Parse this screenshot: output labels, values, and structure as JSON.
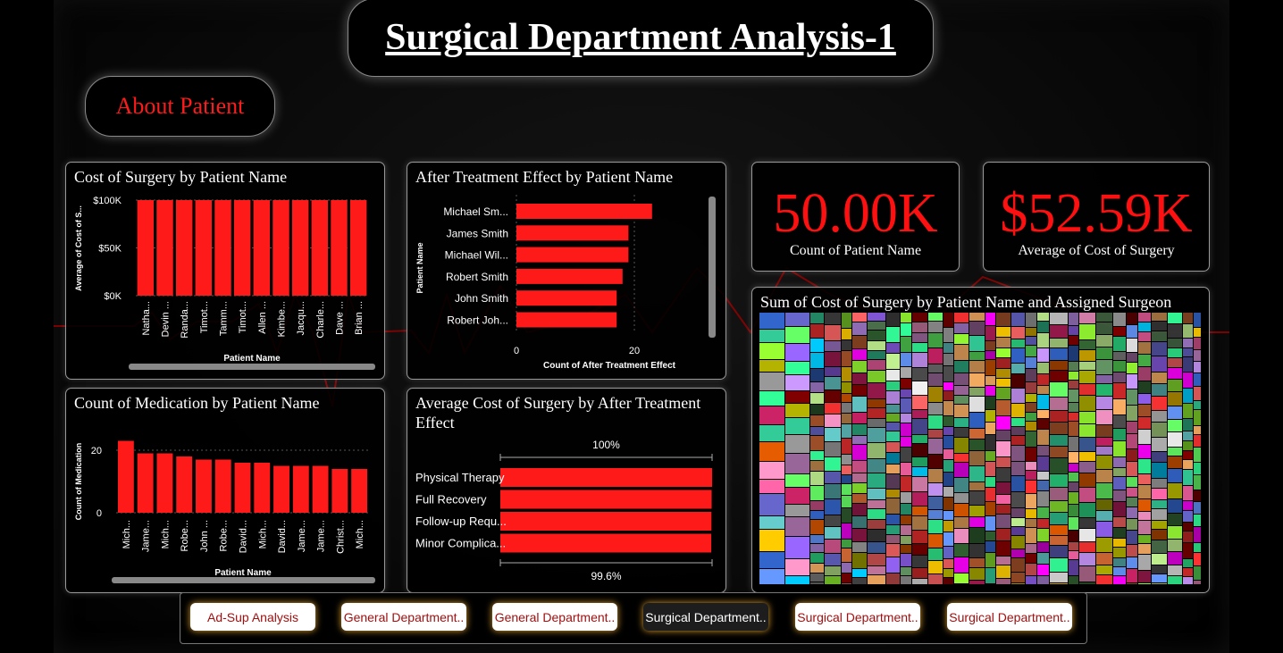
{
  "header": {
    "title": "Surgical Department Analysis-1",
    "about_button": "About Patient"
  },
  "kpis": [
    {
      "value": "50.00K",
      "label": "Count of Patient Name"
    },
    {
      "value": "$52.59K",
      "label": "Average of Cost of Surgery"
    }
  ],
  "nav": {
    "buttons": [
      {
        "label": "Ad-Sup Analysis",
        "active": false
      },
      {
        "label": "General Department..",
        "active": false
      },
      {
        "label": "General Department..",
        "active": false
      },
      {
        "label": "Surgical Department..",
        "active": true
      },
      {
        "label": "Surgical Department..",
        "active": false
      },
      {
        "label": "Surgical Department..",
        "active": false
      }
    ]
  },
  "colors": {
    "bar": "#ff1a1a",
    "accent_red": "#ff1010",
    "nav_glow": "#e0a030"
  },
  "chart_data": [
    {
      "type": "bar",
      "title": "Cost of Surgery by Patient Name",
      "xlabel": "Patient Name",
      "ylabel": "Average of Cost of S...",
      "categories": [
        "Natha...",
        "Devin ...",
        "Randa...",
        "Timot...",
        "Tamm...",
        "Timot...",
        "Allen ...",
        "Kimbe...",
        "Jacqu...",
        "Charle...",
        "Dave ...",
        "Brian ..."
      ],
      "values": [
        100000,
        100000,
        100000,
        100000,
        100000,
        100000,
        100000,
        100000,
        100000,
        100000,
        100000,
        100000
      ],
      "yticks": [
        "$0K",
        "$50K",
        "$100K"
      ],
      "ylim": [
        0,
        100000
      ]
    },
    {
      "type": "bar",
      "orientation": "horizontal",
      "title": "After Treatment Effect by Patient Name",
      "xlabel": "Count of After Treatment Effect",
      "ylabel": "Patient Name",
      "categories": [
        "Michael Sm...",
        "James Smith",
        "Michael Wil...",
        "Robert Smith",
        "John Smith",
        "Robert Joh..."
      ],
      "values": [
        23,
        19,
        19,
        18,
        17,
        17
      ],
      "xticks": [
        "0",
        "20"
      ],
      "xlim": [
        0,
        30
      ]
    },
    {
      "type": "bar",
      "title": "Count of Medication by Patient Name",
      "xlabel": "Patient Name",
      "ylabel": "Count of Medication",
      "categories": [
        "Mich...",
        "Jame...",
        "Mich...",
        "Robe...",
        "John ...",
        "Robe...",
        "David...",
        "Mich...",
        "David...",
        "Jame...",
        "Jame...",
        "Christ...",
        "Mich..."
      ],
      "values": [
        23,
        19,
        19,
        18,
        17,
        17,
        16,
        16,
        15,
        15,
        15,
        14,
        14
      ],
      "yticks": [
        "0",
        "20"
      ],
      "ylim": [
        0,
        26
      ]
    },
    {
      "type": "bar",
      "orientation": "horizontal",
      "title": "Average Cost of Surgery by After Treatment Effect",
      "categories": [
        "Physical Therapy",
        "Full Recovery",
        "Follow-up Requ...",
        "Minor Complica..."
      ],
      "values": [
        100,
        99.8,
        99.7,
        99.6
      ],
      "top_label": "100%",
      "bottom_label": "99.6%"
    },
    {
      "type": "heatmap",
      "title": "Sum of Cost of Surgery by Patient Name and Assigned Surgeon"
    }
  ]
}
